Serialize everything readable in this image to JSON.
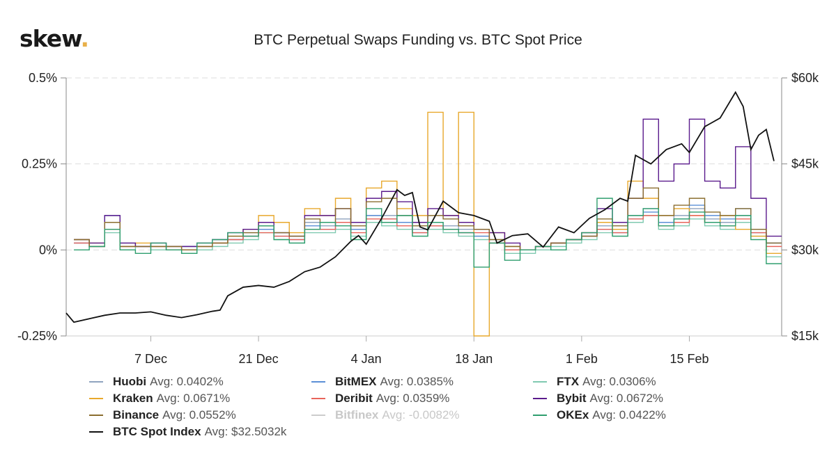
{
  "logo": {
    "text": "skew",
    "dot": "."
  },
  "chart_data": {
    "type": "line",
    "title": "BTC Perpetual Swaps Funding vs. BTC Spot Price",
    "left_axis": {
      "ticks": [
        "0.5%",
        "0.25%",
        "0%",
        "-0.25%"
      ],
      "values": [
        0.5,
        0.25,
        0,
        -0.25
      ],
      "range": [
        -0.25,
        0.5
      ],
      "unit": "%"
    },
    "right_axis": {
      "ticks": [
        "$60k",
        "$45k",
        "$30k",
        "$15k"
      ],
      "values": [
        60,
        45,
        30,
        15
      ],
      "range": [
        15,
        60
      ],
      "unit": "$k"
    },
    "x_axis": {
      "ticks": [
        "7 Dec",
        "21 Dec",
        "4 Jan",
        "18 Jan",
        "1 Feb",
        "15 Feb"
      ],
      "tick_dates": [
        "2020-12-07",
        "2020-12-21",
        "2021-01-04",
        "2021-01-18",
        "2021-02-01",
        "2021-02-15"
      ],
      "range": [
        "2020-11-26",
        "2021-02-27"
      ]
    },
    "grid": "horizontal dashed",
    "legend_position": "bottom",
    "funding_dates": [
      "2020-11-27",
      "2020-11-29",
      "2020-12-01",
      "2020-12-03",
      "2020-12-05",
      "2020-12-07",
      "2020-12-09",
      "2020-12-11",
      "2020-12-13",
      "2020-12-15",
      "2020-12-17",
      "2020-12-19",
      "2020-12-21",
      "2020-12-23",
      "2020-12-25",
      "2020-12-27",
      "2020-12-29",
      "2020-12-31",
      "2021-01-02",
      "2021-01-04",
      "2021-01-06",
      "2021-01-08",
      "2021-01-10",
      "2021-01-12",
      "2021-01-14",
      "2021-01-16",
      "2021-01-18",
      "2021-01-20",
      "2021-01-22",
      "2021-01-24",
      "2021-01-26",
      "2021-01-28",
      "2021-01-30",
      "2021-02-01",
      "2021-02-03",
      "2021-02-05",
      "2021-02-07",
      "2021-02-09",
      "2021-02-11",
      "2021-02-13",
      "2021-02-15",
      "2021-02-17",
      "2021-02-19",
      "2021-02-21",
      "2021-02-23",
      "2021-02-25"
    ],
    "series": [
      {
        "name": "Huobi",
        "avg": "Avg: 0.0402%",
        "color": "#8fa3bf",
        "visible": true,
        "values": [
          0.02,
          0.01,
          0.08,
          0.02,
          0.01,
          0.01,
          0.01,
          0.01,
          0.01,
          0.02,
          0.03,
          0.05,
          0.06,
          0.05,
          0.04,
          0.08,
          0.07,
          0.09,
          0.06,
          0.1,
          0.1,
          0.08,
          0.06,
          0.08,
          0.07,
          0.06,
          0.04,
          0.03,
          0.01,
          0.0,
          0.01,
          0.02,
          0.03,
          0.04,
          0.07,
          0.06,
          0.1,
          0.12,
          0.08,
          0.1,
          0.12,
          0.09,
          0.08,
          0.1,
          0.06,
          0.02
        ]
      },
      {
        "name": "BitMEX",
        "avg": "Avg: 0.0385%",
        "color": "#5b8fd6",
        "visible": true,
        "values": [
          0.02,
          0.01,
          0.1,
          0.01,
          0.01,
          0.01,
          0.0,
          0.01,
          0.01,
          0.02,
          0.03,
          0.04,
          0.06,
          0.04,
          0.03,
          0.07,
          0.06,
          0.08,
          0.06,
          0.1,
          0.09,
          0.08,
          0.05,
          0.07,
          0.06,
          0.05,
          0.04,
          0.02,
          0.0,
          0.0,
          0.01,
          0.02,
          0.03,
          0.04,
          0.06,
          0.05,
          0.09,
          0.11,
          0.08,
          0.09,
          0.13,
          0.1,
          0.09,
          0.12,
          0.05,
          0.02
        ]
      },
      {
        "name": "FTX",
        "avg": "Avg: 0.0306%",
        "color": "#7fc9b0",
        "visible": true,
        "values": [
          0.03,
          0.01,
          0.05,
          0.0,
          0.01,
          0.0,
          0.0,
          -0.01,
          0.0,
          0.01,
          0.02,
          0.03,
          0.05,
          0.03,
          0.02,
          0.05,
          0.05,
          0.06,
          0.04,
          0.08,
          0.07,
          0.06,
          0.04,
          0.06,
          0.05,
          0.04,
          0.03,
          0.02,
          -0.01,
          -0.01,
          0.0,
          0.01,
          0.02,
          0.03,
          0.05,
          0.04,
          0.08,
          0.1,
          0.06,
          0.07,
          0.09,
          0.07,
          0.06,
          0.08,
          0.04,
          -0.02
        ]
      },
      {
        "name": "Kraken",
        "avg": "Avg: 0.0671%",
        "color": "#e8a82b",
        "visible": true,
        "values": [
          0.03,
          0.02,
          0.06,
          0.01,
          0.02,
          0.01,
          0.01,
          0.0,
          0.01,
          0.02,
          0.04,
          0.06,
          0.1,
          0.08,
          0.05,
          0.12,
          0.1,
          0.15,
          0.08,
          0.18,
          0.2,
          0.12,
          0.1,
          0.4,
          0.1,
          0.4,
          -0.25,
          0.05,
          0.01,
          0.0,
          0.01,
          0.02,
          0.03,
          0.05,
          0.08,
          0.06,
          0.2,
          0.15,
          0.1,
          0.12,
          0.1,
          0.08,
          0.1,
          0.06,
          0.04,
          -0.01
        ]
      },
      {
        "name": "Deribit",
        "avg": "Avg: 0.0359%",
        "color": "#e8645a",
        "visible": true,
        "values": [
          0.02,
          0.01,
          0.06,
          0.01,
          0.01,
          0.01,
          0.0,
          0.0,
          0.01,
          0.02,
          0.03,
          0.04,
          0.05,
          0.04,
          0.03,
          0.06,
          0.06,
          0.08,
          0.05,
          0.09,
          0.09,
          0.07,
          0.05,
          0.07,
          0.06,
          0.05,
          0.05,
          0.02,
          0.0,
          0.0,
          0.01,
          0.02,
          0.03,
          0.04,
          0.06,
          0.05,
          0.09,
          0.1,
          0.07,
          0.08,
          0.1,
          0.08,
          0.07,
          0.09,
          0.05,
          0.01
        ]
      },
      {
        "name": "Bybit",
        "avg": "Avg: 0.0672%",
        "color": "#5a1a8c",
        "visible": true,
        "values": [
          0.03,
          0.02,
          0.1,
          0.02,
          0.01,
          0.02,
          0.01,
          0.01,
          0.02,
          0.03,
          0.05,
          0.06,
          0.08,
          0.05,
          0.04,
          0.1,
          0.1,
          0.12,
          0.08,
          0.15,
          0.17,
          0.14,
          0.08,
          0.12,
          0.1,
          0.08,
          0.06,
          0.05,
          0.02,
          0.0,
          0.01,
          0.02,
          0.03,
          0.05,
          0.12,
          0.08,
          0.15,
          0.38,
          0.2,
          0.25,
          0.38,
          0.2,
          0.18,
          0.3,
          0.15,
          0.04
        ]
      },
      {
        "name": "Binance",
        "avg": "Avg: 0.0552%",
        "color": "#8a6d2e",
        "visible": true,
        "values": [
          0.03,
          0.01,
          0.08,
          0.01,
          0.01,
          0.01,
          0.01,
          0.0,
          0.01,
          0.02,
          0.04,
          0.05,
          0.07,
          0.05,
          0.04,
          0.09,
          0.08,
          0.12,
          0.07,
          0.14,
          0.15,
          0.1,
          0.07,
          0.1,
          0.09,
          0.07,
          0.06,
          0.03,
          0.01,
          0.0,
          0.01,
          0.02,
          0.03,
          0.04,
          0.09,
          0.07,
          0.15,
          0.18,
          0.1,
          0.13,
          0.15,
          0.11,
          0.1,
          0.12,
          0.06,
          0.02
        ]
      },
      {
        "name": "Bitfinex",
        "avg": "Avg: -0.0082%",
        "color": "#cccccc",
        "visible": false
      },
      {
        "name": "OKEx",
        "avg": "Avg: 0.0422%",
        "color": "#2e9e6e",
        "visible": true,
        "values": [
          0.0,
          0.01,
          0.06,
          0.0,
          -0.01,
          0.02,
          0.0,
          -0.01,
          0.02,
          0.03,
          0.05,
          0.04,
          0.07,
          0.03,
          0.02,
          0.06,
          0.08,
          0.07,
          0.03,
          0.12,
          0.08,
          0.1,
          0.04,
          0.08,
          0.06,
          0.05,
          -0.05,
          0.02,
          -0.03,
          0.0,
          0.01,
          0.0,
          0.03,
          0.05,
          0.15,
          0.04,
          0.1,
          0.12,
          0.07,
          0.09,
          0.11,
          0.08,
          0.07,
          0.1,
          0.03,
          -0.04
        ]
      },
      {
        "name": "BTC Spot Index",
        "avg": "Avg: $32.5032k",
        "color": "#111111",
        "visible": true,
        "axis": "right",
        "unit": "$k",
        "points": [
          [
            "2020-11-26",
            19.0
          ],
          [
            "2020-11-27",
            17.4
          ],
          [
            "2020-11-29",
            18.0
          ],
          [
            "2020-12-01",
            18.6
          ],
          [
            "2020-12-03",
            19.0
          ],
          [
            "2020-12-05",
            19.0
          ],
          [
            "2020-12-07",
            19.2
          ],
          [
            "2020-12-09",
            18.6
          ],
          [
            "2020-12-11",
            18.2
          ],
          [
            "2020-12-13",
            18.7
          ],
          [
            "2020-12-15",
            19.3
          ],
          [
            "2020-12-16",
            19.5
          ],
          [
            "2020-12-17",
            22.0
          ],
          [
            "2020-12-19",
            23.5
          ],
          [
            "2020-12-21",
            23.8
          ],
          [
            "2020-12-23",
            23.5
          ],
          [
            "2020-12-25",
            24.5
          ],
          [
            "2020-12-27",
            26.2
          ],
          [
            "2020-12-29",
            27.0
          ],
          [
            "2020-12-31",
            28.8
          ],
          [
            "2021-01-02",
            31.5
          ],
          [
            "2021-01-03",
            32.5
          ],
          [
            "2021-01-04",
            31.0
          ],
          [
            "2021-01-06",
            35.5
          ],
          [
            "2021-01-08",
            40.5
          ],
          [
            "2021-01-09",
            39.5
          ],
          [
            "2021-01-10",
            40.0
          ],
          [
            "2021-01-11",
            34.0
          ],
          [
            "2021-01-12",
            33.5
          ],
          [
            "2021-01-14",
            38.5
          ],
          [
            "2021-01-16",
            36.5
          ],
          [
            "2021-01-18",
            36.0
          ],
          [
            "2021-01-20",
            35.0
          ],
          [
            "2021-01-21",
            31.2
          ],
          [
            "2021-01-23",
            32.5
          ],
          [
            "2021-01-25",
            32.8
          ],
          [
            "2021-01-27",
            30.5
          ],
          [
            "2021-01-29",
            34.0
          ],
          [
            "2021-01-31",
            33.0
          ],
          [
            "2021-02-02",
            35.5
          ],
          [
            "2021-02-04",
            37.0
          ],
          [
            "2021-02-06",
            39.0
          ],
          [
            "2021-02-07",
            38.5
          ],
          [
            "2021-02-08",
            46.5
          ],
          [
            "2021-02-10",
            45.0
          ],
          [
            "2021-02-12",
            47.5
          ],
          [
            "2021-02-14",
            48.5
          ],
          [
            "2021-02-15",
            47.0
          ],
          [
            "2021-02-17",
            51.5
          ],
          [
            "2021-02-19",
            53.0
          ],
          [
            "2021-02-21",
            57.5
          ],
          [
            "2021-02-22",
            55.0
          ],
          [
            "2021-02-23",
            47.5
          ],
          [
            "2021-02-24",
            50.0
          ],
          [
            "2021-02-25",
            51.0
          ],
          [
            "2021-02-26",
            45.5
          ]
        ]
      }
    ]
  }
}
